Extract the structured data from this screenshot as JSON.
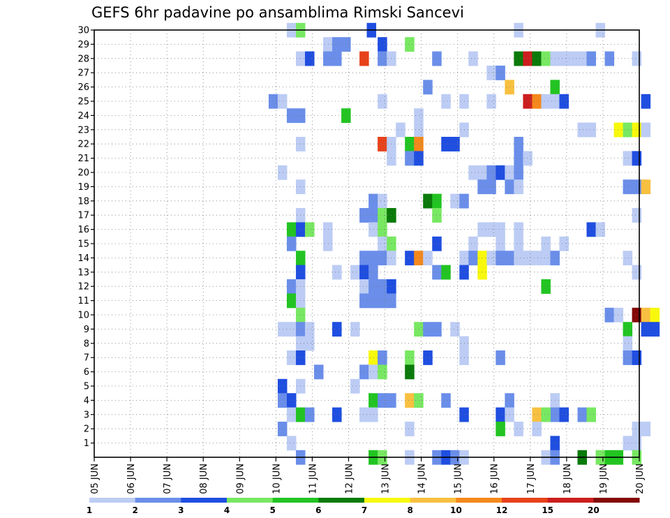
{
  "chart_data": {
    "type": "heatmap",
    "title": "GEFS 6hr padavine po ansamblima Rimski Sancevi",
    "xlabel": "",
    "ylabel": "",
    "x_ticks": [
      "05 JUN",
      "06 JUN",
      "07 JUN",
      "08 JUN",
      "09 JUN",
      "10 JUN",
      "11 JUN",
      "12 JUN",
      "13 JUN",
      "14 JUN",
      "15 JUN",
      "16 JUN",
      "17 JUN",
      "18 JUN",
      "19 JUN",
      "20 JUN"
    ],
    "y_ticks": [
      "1",
      "2",
      "3",
      "4",
      "5",
      "6",
      "7",
      "8",
      "9",
      "10",
      "11",
      "12",
      "13",
      "14",
      "15",
      "16",
      "17",
      "18",
      "19",
      "20",
      "21",
      "22",
      "23",
      "24",
      "25",
      "26",
      "27",
      "28",
      "29",
      "30"
    ],
    "x_range_days": [
      0,
      15
    ],
    "y_range": [
      0,
      30
    ],
    "grid": true,
    "colorbar": {
      "labels": [
        "1",
        "2",
        "3",
        "4",
        "5",
        "6",
        "7",
        "8",
        "10",
        "12",
        "15",
        "20"
      ],
      "colors": [
        "#bcccf4",
        "#6a8ee9",
        "#1f4ee0",
        "#78e862",
        "#22c422",
        "#0a7a0a",
        "#f8f80c",
        "#f8c040",
        "#f5881c",
        "#e8421a",
        "#cc1e1e",
        "#840808"
      ]
    },
    "cells": [
      [
        5.3,
        30,
        0
      ],
      [
        5.55,
        30,
        3
      ],
      [
        7.5,
        30,
        2
      ],
      [
        11.55,
        30,
        0
      ],
      [
        13.8,
        30,
        0
      ],
      [
        6.3,
        29,
        0
      ],
      [
        6.55,
        29,
        1
      ],
      [
        6.8,
        29,
        1
      ],
      [
        7.8,
        29,
        2
      ],
      [
        8.55,
        29,
        3
      ],
      [
        5.55,
        28,
        0
      ],
      [
        5.8,
        28,
        2
      ],
      [
        6.3,
        28,
        1
      ],
      [
        6.55,
        28,
        1
      ],
      [
        7.3,
        28,
        9
      ],
      [
        7.8,
        28,
        1
      ],
      [
        8.05,
        28,
        0
      ],
      [
        9.3,
        28,
        1
      ],
      [
        10.3,
        28,
        0
      ],
      [
        11.55,
        28,
        5
      ],
      [
        11.8,
        28,
        10
      ],
      [
        12.05,
        28,
        5
      ],
      [
        12.3,
        28,
        3
      ],
      [
        12.55,
        28,
        0
      ],
      [
        12.8,
        28,
        0
      ],
      [
        13.05,
        28,
        0
      ],
      [
        13.3,
        28,
        0
      ],
      [
        13.55,
        28,
        1
      ],
      [
        14.05,
        28,
        1
      ],
      [
        14.8,
        28,
        0
      ],
      [
        10.8,
        27,
        0
      ],
      [
        11.05,
        27,
        1
      ],
      [
        9.05,
        26,
        1
      ],
      [
        11.3,
        26,
        7
      ],
      [
        12.55,
        26,
        4
      ],
      [
        4.8,
        25,
        1
      ],
      [
        5.05,
        25,
        0
      ],
      [
        7.8,
        25,
        0
      ],
      [
        9.55,
        25,
        0
      ],
      [
        10.05,
        25,
        0
      ],
      [
        10.8,
        25,
        0
      ],
      [
        11.8,
        25,
        10
      ],
      [
        12.05,
        25,
        8
      ],
      [
        12.3,
        25,
        0
      ],
      [
        12.55,
        25,
        0
      ],
      [
        12.8,
        25,
        2
      ],
      [
        15.05,
        25,
        2
      ],
      [
        5.3,
        24,
        1
      ],
      [
        5.55,
        24,
        1
      ],
      [
        6.8,
        24,
        4
      ],
      [
        8.8,
        24,
        0
      ],
      [
        8.3,
        23,
        0
      ],
      [
        8.8,
        23,
        0
      ],
      [
        10.05,
        23,
        0
      ],
      [
        13.3,
        23,
        0
      ],
      [
        13.55,
        23,
        0
      ],
      [
        14.3,
        23,
        6
      ],
      [
        14.55,
        23,
        3
      ],
      [
        14.8,
        23,
        6
      ],
      [
        15.05,
        23,
        0
      ],
      [
        5.55,
        22,
        0
      ],
      [
        7.8,
        22,
        9
      ],
      [
        8.05,
        22,
        0
      ],
      [
        8.55,
        22,
        4
      ],
      [
        8.8,
        22,
        8
      ],
      [
        9.55,
        22,
        2
      ],
      [
        9.8,
        22,
        2
      ],
      [
        11.55,
        22,
        1
      ],
      [
        8.05,
        21,
        0
      ],
      [
        8.55,
        21,
        1
      ],
      [
        8.8,
        21,
        2
      ],
      [
        11.55,
        21,
        1
      ],
      [
        11.8,
        21,
        0
      ],
      [
        14.55,
        21,
        0
      ],
      [
        14.8,
        21,
        2
      ],
      [
        5.05,
        20,
        0
      ],
      [
        10.3,
        20,
        0
      ],
      [
        10.55,
        20,
        0
      ],
      [
        10.8,
        20,
        1
      ],
      [
        11.05,
        20,
        2
      ],
      [
        11.3,
        20,
        0
      ],
      [
        11.55,
        20,
        1
      ],
      [
        5.55,
        19,
        0
      ],
      [
        10.55,
        19,
        1
      ],
      [
        10.8,
        19,
        1
      ],
      [
        11.3,
        19,
        1
      ],
      [
        11.55,
        19,
        0
      ],
      [
        14.55,
        19,
        1
      ],
      [
        14.8,
        19,
        1
      ],
      [
        15.05,
        19,
        7
      ],
      [
        7.55,
        18,
        1
      ],
      [
        7.8,
        18,
        0
      ],
      [
        9.05,
        18,
        5
      ],
      [
        9.3,
        18,
        4
      ],
      [
        9.8,
        18,
        0
      ],
      [
        10.05,
        18,
        1
      ],
      [
        5.55,
        17,
        0
      ],
      [
        7.3,
        17,
        1
      ],
      [
        7.55,
        17,
        1
      ],
      [
        7.8,
        17,
        3
      ],
      [
        8.05,
        17,
        5
      ],
      [
        9.3,
        17,
        3
      ],
      [
        14.8,
        17,
        0
      ],
      [
        5.3,
        16,
        4
      ],
      [
        5.55,
        16,
        2
      ],
      [
        5.8,
        16,
        3
      ],
      [
        6.3,
        16,
        0
      ],
      [
        7.55,
        16,
        0
      ],
      [
        7.8,
        16,
        3
      ],
      [
        10.55,
        16,
        0
      ],
      [
        10.8,
        16,
        0
      ],
      [
        11.05,
        16,
        0
      ],
      [
        11.55,
        16,
        0
      ],
      [
        13.55,
        16,
        2
      ],
      [
        13.8,
        16,
        0
      ],
      [
        5.3,
        15,
        1
      ],
      [
        6.3,
        15,
        0
      ],
      [
        7.8,
        15,
        0
      ],
      [
        8.05,
        15,
        3
      ],
      [
        9.3,
        15,
        2
      ],
      [
        10.3,
        15,
        0
      ],
      [
        11.05,
        15,
        0
      ],
      [
        11.55,
        15,
        0
      ],
      [
        12.3,
        15,
        0
      ],
      [
        12.8,
        15,
        0
      ],
      [
        5.55,
        14,
        4
      ],
      [
        7.3,
        14,
        1
      ],
      [
        7.55,
        14,
        1
      ],
      [
        7.8,
        14,
        1
      ],
      [
        8.05,
        14,
        0
      ],
      [
        8.55,
        14,
        2
      ],
      [
        8.8,
        14,
        8
      ],
      [
        9.05,
        14,
        0
      ],
      [
        10.05,
        14,
        0
      ],
      [
        10.3,
        14,
        1
      ],
      [
        10.55,
        14,
        6
      ],
      [
        10.8,
        14,
        0
      ],
      [
        11.05,
        14,
        1
      ],
      [
        11.3,
        14,
        1
      ],
      [
        11.55,
        14,
        0
      ],
      [
        11.8,
        14,
        0
      ],
      [
        12.05,
        14,
        0
      ],
      [
        12.3,
        14,
        0
      ],
      [
        12.55,
        14,
        1
      ],
      [
        14.55,
        14,
        0
      ],
      [
        5.55,
        13,
        2
      ],
      [
        6.55,
        13,
        0
      ],
      [
        7.05,
        13,
        0
      ],
      [
        7.3,
        13,
        2
      ],
      [
        7.55,
        13,
        1
      ],
      [
        9.3,
        13,
        1
      ],
      [
        9.55,
        13,
        4
      ],
      [
        10.05,
        13,
        2
      ],
      [
        10.55,
        13,
        6
      ],
      [
        14.8,
        13,
        0
      ],
      [
        5.3,
        12,
        1
      ],
      [
        5.55,
        12,
        0
      ],
      [
        7.3,
        12,
        0
      ],
      [
        7.55,
        12,
        1
      ],
      [
        7.8,
        12,
        1
      ],
      [
        8.05,
        12,
        2
      ],
      [
        12.3,
        12,
        4
      ],
      [
        5.3,
        11,
        4
      ],
      [
        5.55,
        11,
        0
      ],
      [
        7.3,
        11,
        1
      ],
      [
        7.55,
        11,
        1
      ],
      [
        7.8,
        11,
        1
      ],
      [
        8.05,
        11,
        1
      ],
      [
        5.55,
        10,
        3
      ],
      [
        14.05,
        10,
        1
      ],
      [
        14.3,
        10,
        0
      ],
      [
        14.8,
        10,
        11
      ],
      [
        15.05,
        10,
        7
      ],
      [
        15.3,
        10,
        6
      ],
      [
        5.05,
        9,
        0
      ],
      [
        5.3,
        9,
        0
      ],
      [
        5.55,
        9,
        1
      ],
      [
        5.8,
        9,
        0
      ],
      [
        6.55,
        9,
        2
      ],
      [
        7.05,
        9,
        0
      ],
      [
        8.8,
        9,
        3
      ],
      [
        9.05,
        9,
        1
      ],
      [
        9.3,
        9,
        1
      ],
      [
        9.8,
        9,
        0
      ],
      [
        14.55,
        9,
        4
      ],
      [
        15.05,
        9,
        2
      ],
      [
        15.3,
        9,
        2
      ],
      [
        5.55,
        8,
        0
      ],
      [
        5.8,
        8,
        0
      ],
      [
        10.05,
        8,
        0
      ],
      [
        14.55,
        8,
        0
      ],
      [
        5.3,
        7,
        0
      ],
      [
        5.55,
        7,
        2
      ],
      [
        7.55,
        7,
        6
      ],
      [
        7.8,
        7,
        1
      ],
      [
        8.55,
        7,
        3
      ],
      [
        9.05,
        7,
        2
      ],
      [
        10.05,
        7,
        0
      ],
      [
        11.05,
        7,
        1
      ],
      [
        14.55,
        7,
        1
      ],
      [
        14.8,
        7,
        2
      ],
      [
        6.05,
        6,
        1
      ],
      [
        7.3,
        6,
        1
      ],
      [
        7.55,
        6,
        0
      ],
      [
        7.8,
        6,
        3
      ],
      [
        8.55,
        6,
        5
      ],
      [
        5.05,
        5,
        2
      ],
      [
        5.55,
        5,
        0
      ],
      [
        7.05,
        5,
        0
      ],
      [
        5.05,
        4,
        1
      ],
      [
        5.3,
        4,
        2
      ],
      [
        7.55,
        4,
        4
      ],
      [
        7.8,
        4,
        1
      ],
      [
        8.05,
        4,
        1
      ],
      [
        8.55,
        4,
        7
      ],
      [
        8.8,
        4,
        3
      ],
      [
        9.55,
        4,
        1
      ],
      [
        11.3,
        4,
        1
      ],
      [
        12.55,
        4,
        0
      ],
      [
        5.3,
        3,
        0
      ],
      [
        5.55,
        3,
        4
      ],
      [
        5.8,
        3,
        1
      ],
      [
        6.55,
        3,
        2
      ],
      [
        7.3,
        3,
        0
      ],
      [
        7.55,
        3,
        0
      ],
      [
        10.05,
        3,
        2
      ],
      [
        11.05,
        3,
        2
      ],
      [
        11.3,
        3,
        0
      ],
      [
        12.55,
        3,
        1
      ],
      [
        12.8,
        3,
        2
      ],
      [
        12.05,
        3,
        7
      ],
      [
        12.3,
        3,
        3
      ],
      [
        13.3,
        3,
        1
      ],
      [
        13.55,
        3,
        3
      ],
      [
        5.05,
        2,
        1
      ],
      [
        8.55,
        2,
        0
      ],
      [
        11.05,
        2,
        4
      ],
      [
        11.55,
        2,
        0
      ],
      [
        12.05,
        2,
        0
      ],
      [
        14.8,
        2,
        0
      ],
      [
        15.05,
        2,
        0
      ],
      [
        5.3,
        1,
        0
      ],
      [
        12.55,
        1,
        2
      ],
      [
        14.55,
        1,
        0
      ],
      [
        14.8,
        1,
        0
      ],
      [
        5.55,
        0,
        1
      ],
      [
        7.55,
        0,
        4
      ],
      [
        7.8,
        0,
        3
      ],
      [
        8.55,
        0,
        0
      ],
      [
        9.3,
        0,
        1
      ],
      [
        9.55,
        0,
        2
      ],
      [
        9.8,
        0,
        1
      ],
      [
        10.05,
        0,
        0
      ],
      [
        12.3,
        0,
        0
      ],
      [
        12.55,
        0,
        1
      ],
      [
        13.3,
        0,
        5
      ],
      [
        13.8,
        0,
        3
      ],
      [
        14.05,
        0,
        4
      ],
      [
        14.3,
        0,
        4
      ],
      [
        14.8,
        0,
        3
      ]
    ]
  }
}
